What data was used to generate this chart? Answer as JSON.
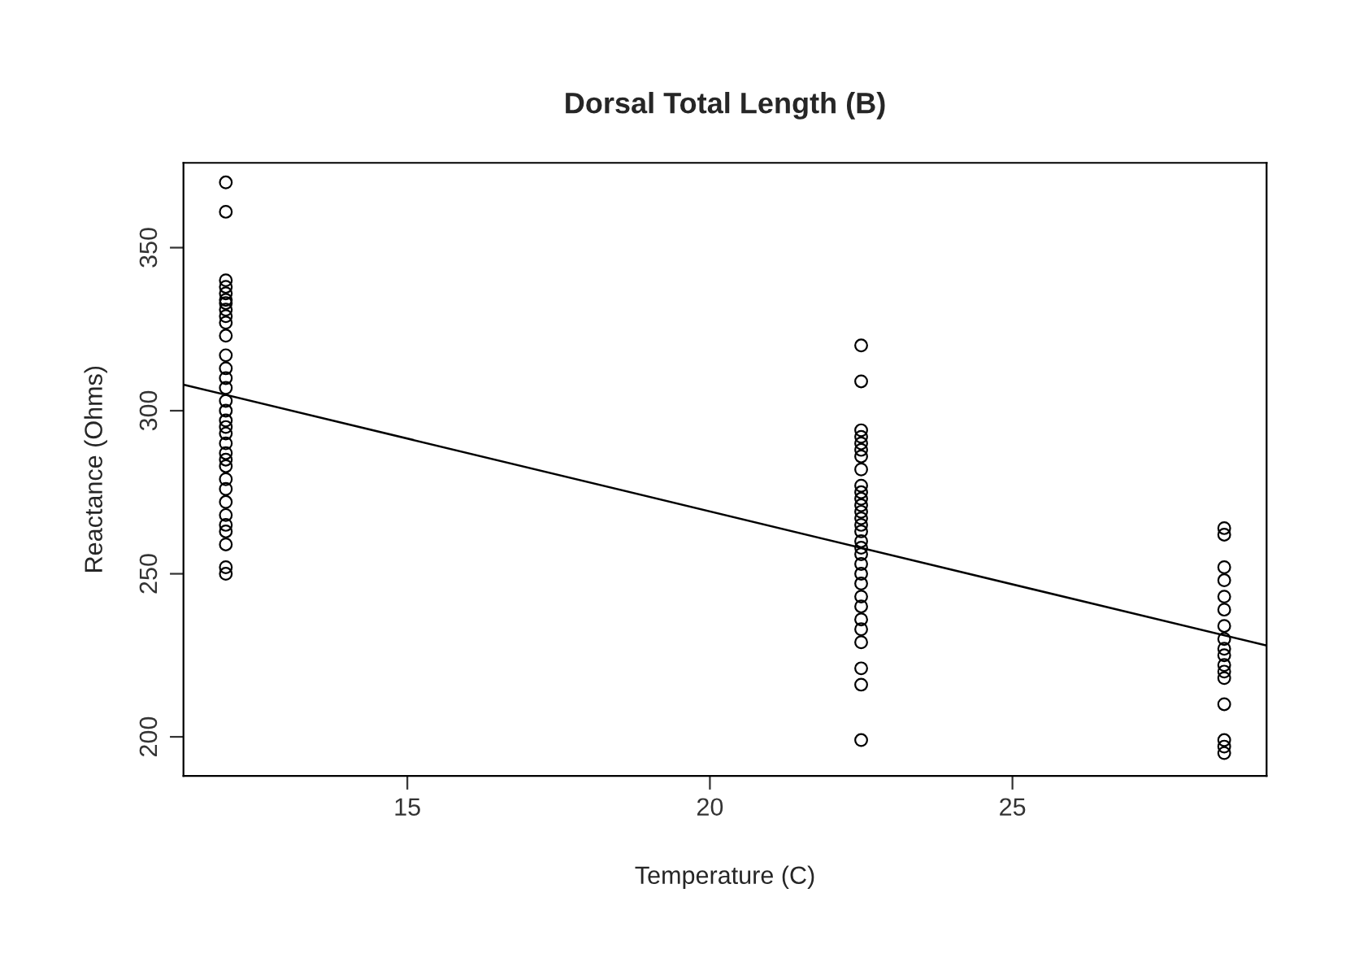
{
  "chart_data": {
    "type": "scatter",
    "title": "Dorsal Total Length (B)",
    "xlabel": "Temperature (C)",
    "ylabel": "Reactance (Ohms)",
    "xlim": [
      11.3,
      29.2
    ],
    "xticks": [
      15,
      20,
      25
    ],
    "ylim": [
      188,
      376
    ],
    "yticks": [
      200,
      250,
      300,
      350
    ],
    "grid": false,
    "legend": false,
    "series": [
      {
        "marker": "circle",
        "color": "#000000",
        "x": [
          12,
          12,
          12,
          12,
          12,
          12,
          12,
          12,
          12,
          12,
          12,
          12,
          12,
          12,
          12,
          12,
          12,
          12,
          12,
          12,
          12,
          12,
          12,
          12,
          12,
          12,
          12,
          12,
          12,
          12,
          12,
          12,
          12,
          22.5,
          22.5,
          22.5,
          22.5,
          22.5,
          22.5,
          22.5,
          22.5,
          22.5,
          22.5,
          22.5,
          22.5,
          22.5,
          22.5,
          22.5,
          22.5,
          22.5,
          22.5,
          22.5,
          22.5,
          22.5,
          22.5,
          22.5,
          22.5,
          22.5,
          22.5,
          22.5,
          22.5,
          22.5,
          22.5,
          28.5,
          28.5,
          28.5,
          28.5,
          28.5,
          28.5,
          28.5,
          28.5,
          28.5,
          28.5,
          28.5,
          28.5,
          28.5,
          28.5,
          28.5,
          28.5,
          28.5
        ],
        "values": [
          370,
          361,
          340,
          338,
          336,
          334,
          333,
          331,
          329,
          327,
          323,
          317,
          313,
          310,
          307,
          303,
          300,
          297,
          295,
          293,
          290,
          287,
          285,
          283,
          279,
          276,
          272,
          268,
          265,
          263,
          259,
          252,
          250,
          320,
          309,
          294,
          292,
          290,
          288,
          286,
          282,
          277,
          275,
          273,
          271,
          269,
          267,
          265,
          263,
          260,
          258,
          256,
          253,
          250,
          247,
          243,
          240,
          236,
          233,
          229,
          221,
          216,
          199,
          264,
          262,
          252,
          248,
          243,
          239,
          234,
          230,
          227,
          225,
          222,
          220,
          218,
          210,
          199,
          197,
          195
        ]
      },
      {
        "type": "line",
        "color": "#000000",
        "x": [
          11.3,
          29.2
        ],
        "values": [
          308,
          228
        ]
      }
    ]
  }
}
